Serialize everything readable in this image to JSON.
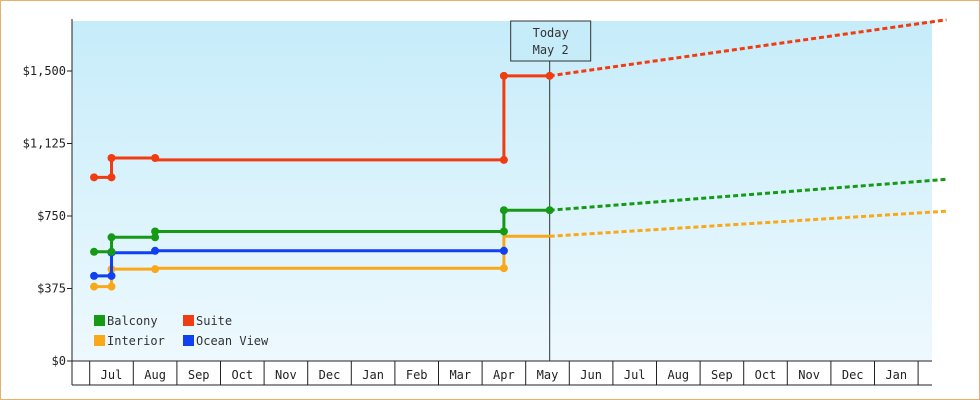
{
  "chart_data": {
    "type": "line",
    "step": true,
    "x_months": [
      "Jul",
      "Aug",
      "Sep",
      "Oct",
      "Nov",
      "Dec",
      "Jan",
      "Feb",
      "Mar",
      "Apr",
      "May",
      "Jun",
      "Jul",
      "Aug",
      "Sep",
      "Oct",
      "Nov",
      "Dec",
      "Jan"
    ],
    "y_ticks": [
      "$0",
      "$375",
      "$750",
      "$1,125",
      "$1,500"
    ],
    "y_tick_values": [
      0,
      375,
      750,
      1125,
      1500
    ],
    "ylim": [
      0,
      1760
    ],
    "xlim_months": [
      -0.4,
      19.15
    ],
    "grid": false,
    "legend_position": "bottom-left",
    "today_marker": {
      "line1": "Today",
      "line2": "May 2",
      "x_month": 10.05
    },
    "series": [
      {
        "name": "Balcony",
        "color": "#169a16",
        "points": [
          [
            -0.4,
            565
          ],
          [
            0.0,
            565
          ],
          [
            0.0,
            640
          ],
          [
            1.0,
            640
          ],
          [
            1.0,
            670
          ],
          [
            9.0,
            670
          ],
          [
            9.0,
            780
          ],
          [
            10.05,
            780
          ]
        ],
        "markers": [
          [
            -0.4,
            565
          ],
          [
            0.0,
            565
          ],
          [
            0.0,
            640
          ],
          [
            1.0,
            640
          ],
          [
            1.0,
            670
          ],
          [
            9.0,
            670
          ],
          [
            9.0,
            780
          ],
          [
            10.05,
            780
          ]
        ],
        "forecast": [
          [
            10.05,
            780
          ],
          [
            19.15,
            940
          ]
        ]
      },
      {
        "name": "Suite",
        "color": "#f03c10",
        "points": [
          [
            -0.4,
            950
          ],
          [
            0.0,
            950
          ],
          [
            0.0,
            1050
          ],
          [
            1.0,
            1050
          ],
          [
            1.0,
            1040
          ],
          [
            9.0,
            1040
          ],
          [
            9.0,
            1475
          ],
          [
            10.05,
            1475
          ]
        ],
        "markers": [
          [
            -0.4,
            950
          ],
          [
            0.0,
            950
          ],
          [
            0.0,
            1050
          ],
          [
            1.0,
            1050
          ],
          [
            9.0,
            1040
          ],
          [
            9.0,
            1475
          ],
          [
            10.05,
            1475
          ]
        ],
        "forecast": [
          [
            10.05,
            1475
          ],
          [
            19.15,
            1765
          ]
        ]
      },
      {
        "name": "Interior",
        "color": "#f8a818",
        "points": [
          [
            -0.4,
            385
          ],
          [
            0.0,
            385
          ],
          [
            0.0,
            475
          ],
          [
            1.0,
            475
          ],
          [
            1.0,
            480
          ],
          [
            9.0,
            480
          ],
          [
            9.0,
            645
          ],
          [
            10.05,
            645
          ]
        ],
        "markers": [
          [
            -0.4,
            385
          ],
          [
            0.0,
            385
          ],
          [
            0.0,
            475
          ],
          [
            1.0,
            475
          ],
          [
            9.0,
            480
          ]
        ],
        "forecast": [
          [
            10.05,
            645
          ],
          [
            19.15,
            775
          ]
        ]
      },
      {
        "name": "Ocean View",
        "color": "#1040f0",
        "points": [
          [
            -0.4,
            440
          ],
          [
            0.0,
            440
          ],
          [
            0.0,
            560
          ],
          [
            1.0,
            560
          ],
          [
            1.0,
            570
          ],
          [
            9.0,
            570
          ]
        ],
        "markers": [
          [
            -0.4,
            440
          ],
          [
            0.0,
            440
          ],
          [
            0.0,
            560
          ],
          [
            1.0,
            570
          ],
          [
            9.0,
            570
          ]
        ],
        "forecast": []
      }
    ],
    "legend_order": [
      "Balcony",
      "Suite",
      "Interior",
      "Ocean View"
    ]
  }
}
